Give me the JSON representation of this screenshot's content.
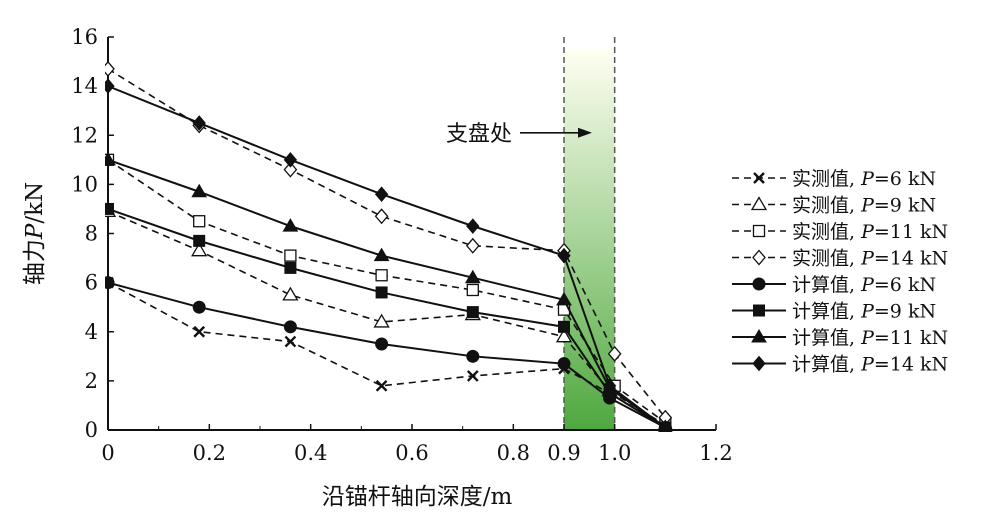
{
  "chart_data": {
    "type": "line",
    "xlabel": "沿锚杆轴向深度/m",
    "ylabel_parts": [
      "轴力",
      "P",
      "/kN"
    ],
    "xlim": [
      0,
      1.2
    ],
    "ylim": [
      0,
      16
    ],
    "x_ticks": [
      {
        "value": 0,
        "label": "0"
      },
      {
        "value": 0.2,
        "label": "0.2"
      },
      {
        "value": 0.4,
        "label": "0.4"
      },
      {
        "value": 0.6,
        "label": "0.6"
      },
      {
        "value": 0.8,
        "label": "0.8"
      },
      {
        "value": 0.9,
        "label": "0.9"
      },
      {
        "value": 1.0,
        "label": "1.0"
      },
      {
        "value": 1.2,
        "label": "1.2"
      }
    ],
    "y_ticks": [
      0,
      2,
      4,
      6,
      8,
      10,
      12,
      14,
      16
    ],
    "grid": false,
    "legend_position": "right",
    "shaded_region": {
      "x_start": 0.9,
      "x_end": 1.0,
      "color_strong": "#4fa83f",
      "color_light": "#fffff2"
    },
    "annotation": {
      "text": "支盘处",
      "x": 0.9,
      "y": 12.1
    },
    "series": [
      {
        "name_prefix": "实测值, ",
        "name_p": "P",
        "name_value": "=6 kN",
        "marker": "x",
        "dash": true,
        "points": [
          [
            0,
            6.0
          ],
          [
            0.18,
            4.0
          ],
          [
            0.36,
            3.6
          ],
          [
            0.54,
            1.8
          ],
          [
            0.72,
            2.2
          ],
          [
            0.9,
            2.5
          ],
          [
            0.99,
            1.5
          ],
          [
            1.1,
            0.15
          ]
        ]
      },
      {
        "name_prefix": "实测值, ",
        "name_p": "P",
        "name_value": "=9 kN",
        "marker": "triangle-open",
        "dash": true,
        "points": [
          [
            0,
            8.9
          ],
          [
            0.18,
            7.3
          ],
          [
            0.36,
            5.5
          ],
          [
            0.54,
            4.4
          ],
          [
            0.72,
            4.7
          ],
          [
            0.9,
            3.8
          ],
          [
            0.99,
            1.6
          ],
          [
            1.1,
            0.2
          ]
        ]
      },
      {
        "name_prefix": "实测值, ",
        "name_p": "P",
        "name_value": "=11 kN",
        "marker": "square-open",
        "dash": true,
        "points": [
          [
            0,
            11.0
          ],
          [
            0.18,
            8.5
          ],
          [
            0.36,
            7.1
          ],
          [
            0.54,
            6.3
          ],
          [
            0.72,
            5.7
          ],
          [
            0.9,
            4.9
          ],
          [
            1.0,
            1.8
          ],
          [
            1.1,
            0.3
          ]
        ]
      },
      {
        "name_prefix": "实测值, ",
        "name_p": "P",
        "name_value": "=14 kN",
        "marker": "diamond-open",
        "dash": true,
        "points": [
          [
            0,
            14.7
          ],
          [
            0.18,
            12.4
          ],
          [
            0.36,
            10.6
          ],
          [
            0.54,
            8.7
          ],
          [
            0.72,
            7.5
          ],
          [
            0.9,
            7.3
          ],
          [
            1.0,
            3.1
          ],
          [
            1.1,
            0.5
          ]
        ]
      },
      {
        "name_prefix": "计算值, ",
        "name_p": "P",
        "name_value": "=6 kN",
        "marker": "circle",
        "dash": false,
        "points": [
          [
            0,
            6.0
          ],
          [
            0.18,
            5.0
          ],
          [
            0.36,
            4.2
          ],
          [
            0.54,
            3.5
          ],
          [
            0.72,
            3.0
          ],
          [
            0.9,
            2.7
          ],
          [
            0.99,
            1.3
          ],
          [
            1.1,
            0.1
          ]
        ]
      },
      {
        "name_prefix": "计算值, ",
        "name_p": "P",
        "name_value": "=9 kN",
        "marker": "square",
        "dash": false,
        "points": [
          [
            0,
            9.0
          ],
          [
            0.18,
            7.7
          ],
          [
            0.36,
            6.6
          ],
          [
            0.54,
            5.6
          ],
          [
            0.72,
            4.8
          ],
          [
            0.9,
            4.2
          ],
          [
            0.99,
            1.5
          ],
          [
            1.1,
            0.1
          ]
        ]
      },
      {
        "name_prefix": "计算值, ",
        "name_p": "P",
        "name_value": "=11 kN",
        "marker": "triangle",
        "dash": false,
        "points": [
          [
            0,
            11.0
          ],
          [
            0.18,
            9.7
          ],
          [
            0.36,
            8.3
          ],
          [
            0.54,
            7.1
          ],
          [
            0.72,
            6.2
          ],
          [
            0.9,
            5.3
          ],
          [
            0.99,
            1.7
          ],
          [
            1.1,
            0.1
          ]
        ]
      },
      {
        "name_prefix": "计算值, ",
        "name_p": "P",
        "name_value": "=14 kN",
        "marker": "diamond",
        "dash": false,
        "points": [
          [
            0,
            14.0
          ],
          [
            0.18,
            12.5
          ],
          [
            0.36,
            11.0
          ],
          [
            0.54,
            9.6
          ],
          [
            0.72,
            8.3
          ],
          [
            0.9,
            7.1
          ],
          [
            0.99,
            1.8
          ],
          [
            1.1,
            0.1
          ]
        ]
      }
    ]
  }
}
